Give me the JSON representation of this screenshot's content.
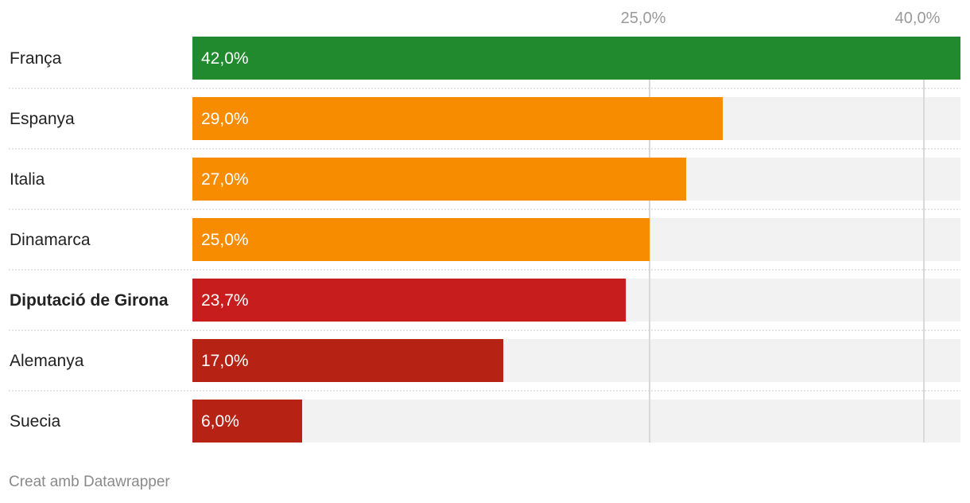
{
  "chart_data": {
    "type": "bar",
    "orientation": "horizontal",
    "categories": [
      "França",
      "Espanya",
      "Italia",
      "Dinamarca",
      "Diputació de Girona",
      "Alemanya",
      "Suecia"
    ],
    "values": [
      42.0,
      29.0,
      27.0,
      25.0,
      23.7,
      17.0,
      6.0
    ],
    "value_labels": [
      "42,0%",
      "29,0%",
      "27,0%",
      "25,0%",
      "23,7%",
      "17,0%",
      "6,0%"
    ],
    "bar_colors": [
      "#218a2e",
      "#f78c00",
      "#f78c00",
      "#f78c00",
      "#c81d1d",
      "#b62214",
      "#b62214"
    ],
    "highlighted_category": "Diputació de Girona",
    "xlim": [
      0,
      42
    ],
    "gridlines": [
      {
        "value": 25,
        "label": "25,0%"
      },
      {
        "value": 40,
        "label": "40,0%"
      }
    ],
    "colors": {
      "track": "#f2f2f2",
      "gridline": "#d9d9d9",
      "tick_label": "#9a9a9a",
      "category_label": "#222222",
      "value_label": "#ffffff",
      "separator": "#cccccc"
    }
  },
  "footer": {
    "credit": "Creat amb Datawrapper"
  }
}
